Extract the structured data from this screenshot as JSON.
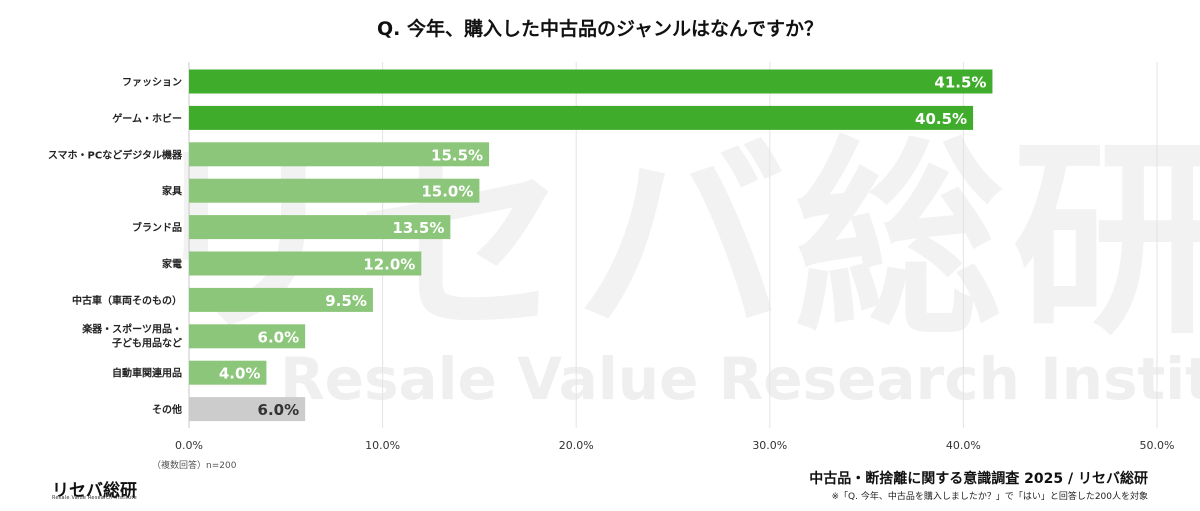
{
  "title": "Q. 今年、購入した中古品のジャンルはなんですか？",
  "note": "（複数回答）n=200",
  "source": "中古品・断捨離に関する意識調査 2025 / リセバ総研",
  "footnote": "※「Q. 今年、中古品を購入しましたか？」で「はい」と回答した200人を対象",
  "logo": {
    "text": "リセバ総研",
    "sub": "Resale Value Research Institute"
  },
  "watermark": {
    "logo": "リセバ総研",
    "sub": "Resale Value Research Institute"
  },
  "colors": {
    "top": "#3fac2c",
    "mid": "#8cc67a",
    "other": "#cccccc",
    "label_dark": "#333333"
  },
  "chart_data": {
    "type": "bar",
    "orientation": "horizontal",
    "categories": [
      [
        "ファッション"
      ],
      [
        "ゲーム・ホビー"
      ],
      [
        "スマホ・PCなどデジタル機器"
      ],
      [
        "家具"
      ],
      [
        "ブランド品"
      ],
      [
        "家電"
      ],
      [
        "中古車（車両そのもの）"
      ],
      [
        "楽器・スポーツ用品・",
        "子ども用品など"
      ],
      [
        "自動車関連用品"
      ],
      [
        "その他"
      ]
    ],
    "values": [
      41.5,
      40.5,
      15.5,
      15.0,
      13.5,
      12.0,
      9.5,
      6.0,
      4.0,
      6.0
    ],
    "value_labels": [
      "41.5%",
      "40.5%",
      "15.5%",
      "15.0%",
      "13.5%",
      "12.0%",
      "9.5%",
      "6.0%",
      "4.0%",
      "6.0%"
    ],
    "xlim": [
      0,
      50
    ],
    "xticks": [
      "0.0%",
      "10.0%",
      "20.0%",
      "30.0%",
      "40.0%",
      "50.0%"
    ],
    "grid": true
  }
}
